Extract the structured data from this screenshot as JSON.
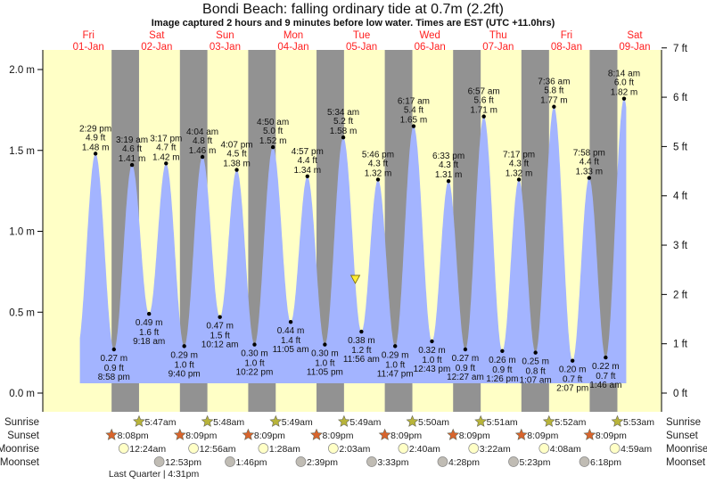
{
  "chart_data": {
    "type": "area",
    "title": "Bondi Beach: falling  ordinary tide at 0.7m (2.2ft)",
    "subtitle": "Image captured 2 hours and 9 minutes before low water. Times are EST (UTC +11.0hrs)",
    "current_level_m": 0.7,
    "days": [
      {
        "name": "Fri",
        "date": "01-Jan"
      },
      {
        "name": "Sat",
        "date": "02-Jan"
      },
      {
        "name": "Sun",
        "date": "03-Jan"
      },
      {
        "name": "Mon",
        "date": "04-Jan"
      },
      {
        "name": "Tue",
        "date": "05-Jan"
      },
      {
        "name": "Wed",
        "date": "06-Jan"
      },
      {
        "name": "Thu",
        "date": "07-Jan"
      },
      {
        "name": "Fri",
        "date": "08-Jan"
      },
      {
        "name": "Sat",
        "date": "09-Jan"
      }
    ],
    "y_left": {
      "unit": "m",
      "ylim": [
        0,
        2.1
      ],
      "ticks": [
        "0.0 m",
        "0.5 m",
        "1.0 m",
        "1.5 m",
        "2.0 m"
      ],
      "tick_values": [
        0,
        0.5,
        1.0,
        1.5,
        2.0
      ]
    },
    "y_right": {
      "unit": "ft",
      "ticks": [
        "0 ft",
        "1 ft",
        "2 ft",
        "3 ft",
        "4 ft",
        "5 ft",
        "6 ft",
        "7 ft"
      ],
      "tick_values": [
        0,
        1,
        2,
        3,
        4,
        5,
        6,
        7
      ]
    },
    "extremes": [
      {
        "day": 1,
        "time": "2:29 pm",
        "m": "1.48 m",
        "ft": "4.9 ft",
        "value": 1.48,
        "type": "high"
      },
      {
        "day": 1,
        "time": "8:58 pm",
        "m": "0.27 m",
        "ft": "0.9 ft",
        "value": 0.27,
        "type": "low"
      },
      {
        "day": 2,
        "time": "3:19 am",
        "m": "1.41 m",
        "ft": "4.6 ft",
        "value": 1.41,
        "type": "high"
      },
      {
        "day": 2,
        "time": "9:18 am",
        "m": "0.49 m",
        "ft": "1.6 ft",
        "value": 0.49,
        "type": "low"
      },
      {
        "day": 2,
        "time": "3:17 pm",
        "m": "1.42 m",
        "ft": "4.7 ft",
        "value": 1.42,
        "type": "high"
      },
      {
        "day": 2,
        "time": "9:40 pm",
        "m": "0.29 m",
        "ft": "1.0 ft",
        "value": 0.29,
        "type": "low"
      },
      {
        "day": 3,
        "time": "4:04 am",
        "m": "1.46 m",
        "ft": "4.8 ft",
        "value": 1.46,
        "type": "high"
      },
      {
        "day": 3,
        "time": "10:12 am",
        "m": "0.47 m",
        "ft": "1.5 ft",
        "value": 0.47,
        "type": "low"
      },
      {
        "day": 3,
        "time": "4:07 pm",
        "m": "1.38 m",
        "ft": "4.5 ft",
        "value": 1.38,
        "type": "high"
      },
      {
        "day": 3,
        "time": "10:22 pm",
        "m": "0.30 m",
        "ft": "1.0 ft",
        "value": 0.3,
        "type": "low"
      },
      {
        "day": 4,
        "time": "4:50 am",
        "m": "1.52 m",
        "ft": "5.0 ft",
        "value": 1.52,
        "type": "high"
      },
      {
        "day": 4,
        "time": "11:05 am",
        "m": "0.44 m",
        "ft": "1.4 ft",
        "value": 0.44,
        "type": "low"
      },
      {
        "day": 4,
        "time": "4:57 pm",
        "m": "1.34 m",
        "ft": "4.4 ft",
        "value": 1.34,
        "type": "high"
      },
      {
        "day": 4,
        "time": "11:05 pm",
        "m": "0.30 m",
        "ft": "1.0 ft",
        "value": 0.3,
        "type": "low"
      },
      {
        "day": 5,
        "time": "5:34 am",
        "m": "1.58 m",
        "ft": "5.2 ft",
        "value": 1.58,
        "type": "high"
      },
      {
        "day": 5,
        "time": "11:56 am",
        "m": "0.38 m",
        "ft": "1.2 ft",
        "value": 0.38,
        "type": "low"
      },
      {
        "day": 5,
        "time": "5:46 pm",
        "m": "1.32 m",
        "ft": "4.3 ft",
        "value": 1.32,
        "type": "high"
      },
      {
        "day": 5,
        "time": "11:47 pm",
        "m": "0.29 m",
        "ft": "1.0 ft",
        "value": 0.29,
        "type": "low"
      },
      {
        "day": 6,
        "time": "6:17 am",
        "m": "1.65 m",
        "ft": "5.4 ft",
        "value": 1.65,
        "type": "high"
      },
      {
        "day": 6,
        "time": "12:43 pm",
        "m": "0.32 m",
        "ft": "1.0 ft",
        "value": 0.32,
        "type": "low"
      },
      {
        "day": 6,
        "time": "6:33 pm",
        "m": "1.31 m",
        "ft": "4.3 ft",
        "value": 1.31,
        "type": "high"
      },
      {
        "day": 7,
        "time": "12:27 am",
        "m": "0.27 m",
        "ft": "0.9 ft",
        "value": 0.27,
        "type": "low"
      },
      {
        "day": 7,
        "time": "6:57 am",
        "m": "1.71 m",
        "ft": "5.6 ft",
        "value": 1.71,
        "type": "high"
      },
      {
        "day": 7,
        "time": "1:26 pm",
        "m": "0.26 m",
        "ft": "0.9 ft",
        "value": 0.26,
        "type": "low"
      },
      {
        "day": 7,
        "time": "7:17 pm",
        "m": "1.32 m",
        "ft": "4.3 ft",
        "value": 1.32,
        "type": "high"
      },
      {
        "day": 8,
        "time": "1:07 am",
        "m": "0.25 m",
        "ft": "0.8 ft",
        "value": 0.25,
        "type": "low"
      },
      {
        "day": 8,
        "time": "7:36 am",
        "m": "1.77 m",
        "ft": "5.8 ft",
        "value": 1.77,
        "type": "high"
      },
      {
        "day": 8,
        "time": "2:07 pm",
        "m": "0.20 m",
        "ft": "0.7 ft",
        "value": 0.2,
        "type": "low"
      },
      {
        "day": 8,
        "time": "7:58 pm",
        "m": "1.33 m",
        "ft": "4.4 ft",
        "value": 1.33,
        "type": "high"
      },
      {
        "day": 9,
        "time": "1:46 am",
        "m": "0.22 m",
        "ft": "0.7 ft",
        "value": 0.22,
        "type": "low"
      },
      {
        "day": 9,
        "time": "8:14 am",
        "m": "1.82 m",
        "ft": "6.0 ft",
        "value": 1.82,
        "type": "high"
      }
    ],
    "row_labels": {
      "sunrise": "Sunrise",
      "sunset": "Sunset",
      "moonrise": "Moonrise",
      "moonset": "Moonset"
    },
    "sunrise": [
      {
        "day": 2,
        "time": "5:47am"
      },
      {
        "day": 3,
        "time": "5:48am"
      },
      {
        "day": 4,
        "time": "5:49am"
      },
      {
        "day": 5,
        "time": "5:49am"
      },
      {
        "day": 6,
        "time": "5:50am"
      },
      {
        "day": 7,
        "time": "5:51am"
      },
      {
        "day": 8,
        "time": "5:52am"
      },
      {
        "day": 9,
        "time": "5:53am"
      }
    ],
    "sunset": [
      {
        "day": 1,
        "time": "8:08pm"
      },
      {
        "day": 2,
        "time": "8:09pm"
      },
      {
        "day": 3,
        "time": "8:09pm"
      },
      {
        "day": 4,
        "time": "8:09pm"
      },
      {
        "day": 5,
        "time": "8:09pm"
      },
      {
        "day": 6,
        "time": "8:09pm"
      },
      {
        "day": 7,
        "time": "8:09pm"
      },
      {
        "day": 8,
        "time": "8:09pm"
      }
    ],
    "moonrise": [
      {
        "day": 2,
        "time": "12:24am"
      },
      {
        "day": 3,
        "time": "12:56am"
      },
      {
        "day": 4,
        "time": "1:28am"
      },
      {
        "day": 5,
        "time": "2:03am"
      },
      {
        "day": 6,
        "time": "2:40am"
      },
      {
        "day": 7,
        "time": "3:22am"
      },
      {
        "day": 8,
        "time": "4:08am"
      },
      {
        "day": 9,
        "time": "4:59am"
      }
    ],
    "moonset": [
      {
        "day": 2,
        "time": "12:53pm"
      },
      {
        "day": 3,
        "time": "1:46pm"
      },
      {
        "day": 4,
        "time": "2:39pm"
      },
      {
        "day": 5,
        "time": "3:33pm"
      },
      {
        "day": 6,
        "time": "4:28pm"
      },
      {
        "day": 7,
        "time": "5:23pm"
      },
      {
        "day": 8,
        "time": "6:18pm"
      }
    ],
    "moon_phase": {
      "day": 2,
      "label": "Last Quarter",
      "time": "4:31pm"
    },
    "colors": {
      "day_bg": "#ffffc6",
      "night_bg": "#929292",
      "water": "#a3b4ff",
      "day_label": "#ff2a2a",
      "sunrise": "#b8b43a",
      "sunset": "#d8642c",
      "moonrise": "#ffffc6",
      "moonset": "#c0bcb4"
    }
  }
}
